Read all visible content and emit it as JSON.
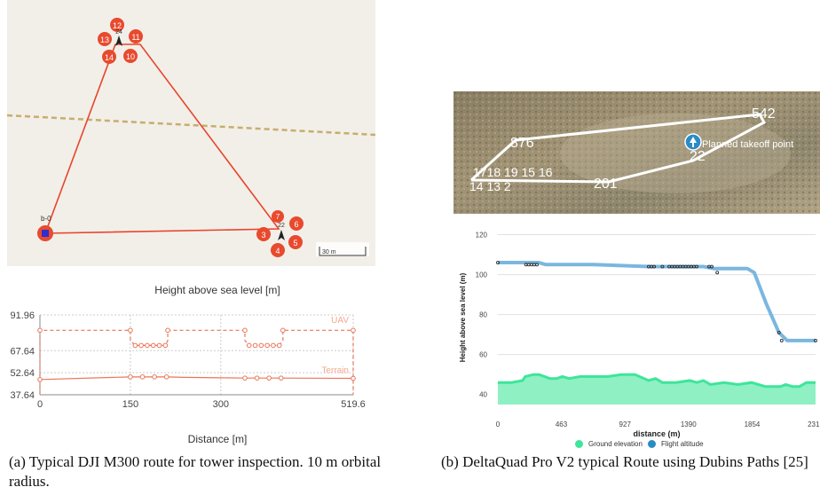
{
  "figure_a": {
    "map": {
      "waypoints_top": [
        "12",
        "11",
        "13",
        "14",
        "10"
      ],
      "top_center_label": "24",
      "home_label": "b-0",
      "waypoints_right": [
        "7",
        "6",
        "3",
        "5",
        "4"
      ],
      "right_center_label": "22",
      "scale_label": "30 m",
      "colors": {
        "route": "#e8452a",
        "marker": "#e84a2e",
        "home": "#2f2fd0",
        "dashed_line": "#c8ad6c",
        "background": "#f2efe9"
      }
    },
    "chart_data": {
      "type": "line",
      "title": "Height above sea level [m]",
      "xlabel": "Distance [m]",
      "ylabel": "",
      "x_ticks": [
        "0",
        "150",
        "300",
        "519.6"
      ],
      "y_ticks": [
        "91.96",
        "67.64",
        "52.64",
        "37.64"
      ],
      "xlim": [
        0,
        519.6
      ],
      "ylim": [
        37.64,
        91.96
      ],
      "series": [
        {
          "name": "UAV",
          "style": "dashed",
          "x": [
            0,
            0,
            150,
            150,
            158,
            168,
            178,
            188,
            198,
            208,
            212,
            212,
            340,
            340,
            347,
            357,
            367,
            377,
            387,
            397,
            403,
            403,
            519.6,
            519.6
          ],
          "y": [
            37.64,
            81.5,
            81.5,
            74.5,
            71.2,
            71.2,
            71.2,
            71.2,
            71.2,
            71.2,
            74.5,
            81.5,
            81.5,
            74.5,
            71.2,
            71.2,
            71.2,
            71.2,
            71.2,
            71.2,
            74.5,
            81.5,
            81.5,
            37.64
          ],
          "markers_x": [
            0,
            150,
            158,
            168,
            178,
            188,
            198,
            208,
            212,
            340,
            347,
            357,
            367,
            377,
            387,
            397,
            403,
            519.6
          ],
          "markers_y": [
            81.5,
            81.5,
            71.2,
            71.2,
            71.2,
            71.2,
            71.2,
            71.2,
            81.5,
            81.5,
            71.2,
            71.2,
            71.2,
            71.2,
            71.2,
            71.2,
            81.5,
            81.5
          ]
        },
        {
          "name": "Terrain",
          "style": "solid",
          "x": [
            0,
            150,
            170,
            190,
            210,
            240,
            300,
            340,
            360,
            380,
            400,
            519.6
          ],
          "y": [
            48.0,
            49.8,
            49.8,
            49.8,
            49.8,
            49.5,
            49.2,
            49.0,
            49.0,
            49.0,
            49.0,
            48.8
          ],
          "markers_x": [
            0,
            150,
            170,
            190,
            210,
            340,
            360,
            380,
            400,
            519.6
          ],
          "markers_y": [
            48.0,
            49.8,
            49.8,
            49.8,
            49.8,
            49.0,
            49.0,
            49.0,
            49.0,
            48.8
          ]
        }
      ],
      "colors": {
        "line": "#e8765a",
        "axis": "#888888"
      }
    },
    "caption": "(a) Typical DJI M300 route for tower inspection. 10 m orbital radius."
  },
  "figure_b": {
    "satellite": {
      "labels": {
        "wp_876": "876",
        "wp_54_2": "542",
        "takeoff": "Planned takeoff point",
        "wp_22": "22",
        "wp_201": "201",
        "wp_cluster": "1718 19 15 16",
        "wp_cluster2": "14 13 2"
      },
      "colors": {
        "route": "#ffffff",
        "takeoff": "#2a8bc6"
      }
    },
    "chart_data": {
      "type": "area",
      "xlabel": "distance (m)",
      "ylabel": "Height above sea level (m)",
      "x_ticks": [
        "0",
        "463",
        "927",
        "1390",
        "1854",
        "2317"
      ],
      "y_ticks": [
        "120",
        "100",
        "80",
        "60",
        "40"
      ],
      "xlim": [
        0,
        2317
      ],
      "ylim": [
        35,
        122
      ],
      "series": [
        {
          "name": "Ground elevation",
          "type": "area",
          "x": [
            0,
            100,
            180,
            200,
            260,
            300,
            380,
            430,
            470,
            520,
            600,
            700,
            800,
            900,
            1000,
            1100,
            1150,
            1200,
            1300,
            1400,
            1450,
            1500,
            1550,
            1650,
            1750,
            1850,
            1950,
            2000,
            2060,
            2100,
            2150,
            2200,
            2250,
            2317
          ],
          "y": [
            46,
            46,
            47,
            49,
            50,
            50,
            48,
            48,
            49,
            48,
            49,
            49,
            49,
            50,
            50,
            47,
            48,
            46,
            46,
            47,
            46,
            47,
            45,
            46,
            45,
            46,
            44,
            44,
            44,
            45,
            44,
            44,
            46,
            46
          ]
        },
        {
          "name": "Flight altitude",
          "type": "line",
          "x": [
            0,
            300,
            350,
            700,
            1100,
            1500,
            1580,
            1750,
            1820,
            1870,
            1960,
            2050,
            2110,
            2317
          ],
          "y": [
            106,
            106,
            105,
            105,
            104,
            104,
            103,
            103,
            103,
            101,
            85,
            71,
            67,
            67
          ]
        },
        {
          "name": "waypoints",
          "type": "markers",
          "x": [
            0,
            205,
            225,
            245,
            265,
            285,
            1100,
            1120,
            1140,
            1200,
            1250,
            1270,
            1290,
            1310,
            1330,
            1350,
            1370,
            1390,
            1410,
            1430,
            1450,
            1540,
            1560,
            1600,
            2050,
            2070,
            2317
          ],
          "y": [
            106,
            105,
            105,
            105,
            105,
            105,
            104,
            104,
            104,
            104,
            104,
            104,
            104,
            104,
            104,
            104,
            104,
            104,
            104,
            104,
            104,
            104,
            104,
            101,
            71,
            67,
            67
          ]
        }
      ],
      "colors": {
        "ground": "#3ee59a",
        "ground_fill": "#8ff0c4",
        "flight": "#7ab7e0",
        "marker": "#2b2b2b",
        "grid": "#e0e0e0"
      }
    },
    "caption": "(b) DeltaQuad Pro V2 typical Route using Dubins Paths [25]"
  }
}
